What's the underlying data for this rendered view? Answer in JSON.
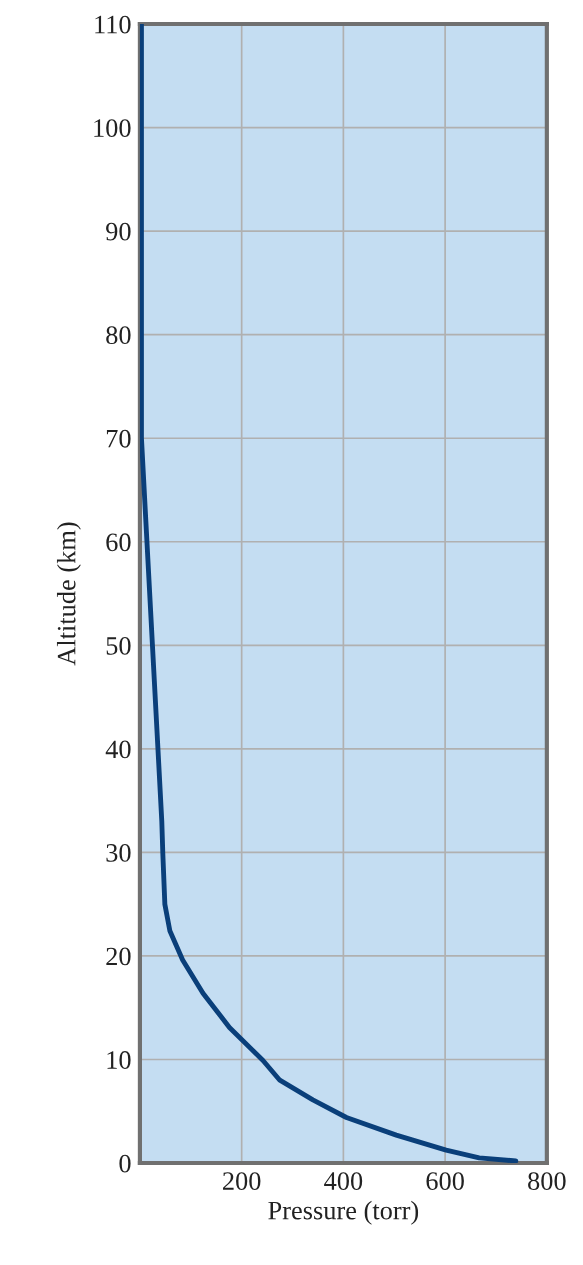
{
  "chart_data": {
    "type": "line",
    "xlabel": "Pressure (torr)",
    "ylabel": "Altitude (km)",
    "x": [
      739,
      667,
      602,
      504,
      406,
      340,
      275,
      242,
      176,
      124,
      84,
      59,
      49,
      45,
      43,
      3,
      3
    ],
    "series": [
      {
        "color": "#0a3f7a",
        "values": [
          0.2,
          0.5,
          1.25,
          2.7,
          4.4,
          6.1,
          8.0,
          9.9,
          13.1,
          16.4,
          19.6,
          22.4,
          25,
          29.9,
          33,
          70,
          110
        ]
      }
    ],
    "xlim": [
      0,
      800
    ],
    "xticks": [
      200,
      400,
      600,
      800
    ],
    "ylim": [
      0,
      110
    ],
    "yticks": [
      0,
      10,
      20,
      30,
      40,
      50,
      60,
      70,
      80,
      90,
      100,
      110
    ],
    "grid": true
  }
}
